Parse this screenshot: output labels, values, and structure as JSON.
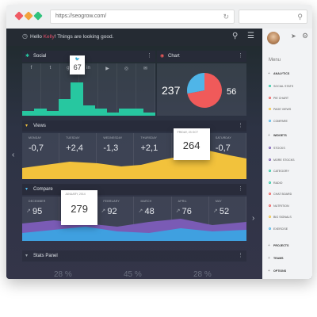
{
  "browser": {
    "url": "https://seogrow.com/",
    "dots": [
      "#ef5a64",
      "#f2a23c",
      "#2fc27c"
    ],
    "reload_icon": "reload-icon",
    "search_icon": "search-icon"
  },
  "topbar": {
    "greeting_prefix": "Hello",
    "user": "Kelly",
    "greeting_suffix": "! Things are looking good."
  },
  "social": {
    "title": "Social",
    "callout": "67",
    "bars": [
      0.15,
      0.22,
      0.15,
      0.5,
      1.0,
      0.32,
      0.22,
      0.1,
      0.22,
      0.22,
      0.1
    ]
  },
  "chart": {
    "title": "Chart",
    "left_value": "237",
    "right_value": "56",
    "pie": [
      {
        "label": "red",
        "value": 0.72,
        "color": "#f05a5a"
      },
      {
        "label": "blue",
        "value": 0.28,
        "color": "#4fb5e8"
      }
    ]
  },
  "views": {
    "title": "Views",
    "columns": [
      {
        "label": "MONDAY",
        "value": "-0,7"
      },
      {
        "label": "TUESDAY",
        "value": "+2,4"
      },
      {
        "label": "WEDNESDAY",
        "value": "-1,3"
      },
      {
        "label": "THURSDAY",
        "value": "+2,1"
      },
      {
        "label": "SATURDAY",
        "value": "-0,7"
      }
    ],
    "callout_label": "FRIDAY, 23 OCT",
    "callout_value": "264"
  },
  "compare": {
    "title": "Compare",
    "columns": [
      {
        "label": "DECEMBER",
        "value": "95"
      },
      {
        "label": "FEBRUARY",
        "value": "92"
      },
      {
        "label": "MARCH",
        "value": "48"
      },
      {
        "label": "APRIL",
        "value": "76"
      },
      {
        "label": "MAY",
        "value": "52"
      }
    ],
    "callout_label": "JANUARY, 2014",
    "callout_value": "279"
  },
  "stats": {
    "title": "Stats Panel",
    "values": [
      "28 %",
      "45 %",
      "28 %"
    ]
  },
  "sidebar": {
    "menu_label": "Menu",
    "sections": [
      {
        "label": "ANALYTICS",
        "items": [
          {
            "label": "SOCIAL STATS",
            "color": "#27c7a0"
          },
          {
            "label": "PIE CHART",
            "color": "#f05a5a"
          },
          {
            "label": "PAGE VIEWS",
            "color": "#f2c23c"
          },
          {
            "label": "COMPARE",
            "color": "#4fb5e8"
          }
        ]
      },
      {
        "label": "WIDGETS",
        "items": [
          {
            "label": "STOCKS",
            "color": "#7a5bb5"
          },
          {
            "label": "MORE STOCKS",
            "color": "#7a5bb5"
          },
          {
            "label": "CATEGORY",
            "color": "#27c7a0"
          },
          {
            "label": "RADIO",
            "color": "#27c7a0"
          },
          {
            "label": "CHAT BOARD",
            "color": "#f05a5a"
          },
          {
            "label": "NUTRITION",
            "color": "#f05a5a"
          },
          {
            "label": "BIG SIGNALS",
            "color": "#f2c23c"
          },
          {
            "label": "EXERCISE",
            "color": "#4fb5e8"
          }
        ]
      }
    ],
    "bottom": [
      "PROJECTS",
      "TEAMS",
      "OPTIONS"
    ]
  }
}
